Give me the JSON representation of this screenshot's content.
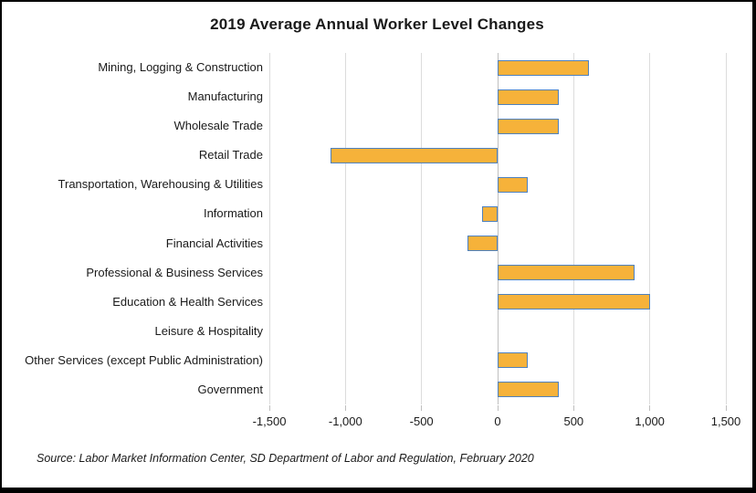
{
  "title": "2019 Average Annual Worker Level Changes",
  "source_note": "Source: Labor Market Information Center, SD Department of Labor and Regulation, February 2020",
  "colors": {
    "background": "#FFFFFF",
    "frame_border": "#000000",
    "text": "#1A1A1A",
    "bar_fill": "#F6B23A",
    "bar_border": "#4E81BE",
    "gridline": "#DCDCDC",
    "axis_line": "#BFBFBF",
    "ticks": "#BFBFBF"
  },
  "chart_data": {
    "type": "bar",
    "orientation": "horizontal",
    "title": "2019 Average Annual Worker Level Changes",
    "xlabel": "",
    "ylabel": "",
    "categories": [
      "Mining, Logging & Construction",
      "Manufacturing",
      "Wholesale Trade",
      "Retail Trade",
      "Transportation, Warehousing & Utilities",
      "Information",
      "Financial Activities",
      "Professional & Business Services",
      "Education & Health Services",
      "Leisure & Hospitality",
      "Other Services (except Public Administration)",
      "Government"
    ],
    "values": [
      600,
      400,
      400,
      -1100,
      200,
      -100,
      -200,
      900,
      1000,
      0,
      200,
      400
    ],
    "xlim": [
      -1500,
      1500
    ],
    "xticks": [
      -1500,
      -1000,
      -500,
      0,
      500,
      1000,
      1500
    ],
    "xtick_labels": [
      "-1,500",
      "-1,000",
      "-500",
      "0",
      "500",
      "1,000",
      "1,500"
    ],
    "grid": true,
    "legend": "none"
  }
}
